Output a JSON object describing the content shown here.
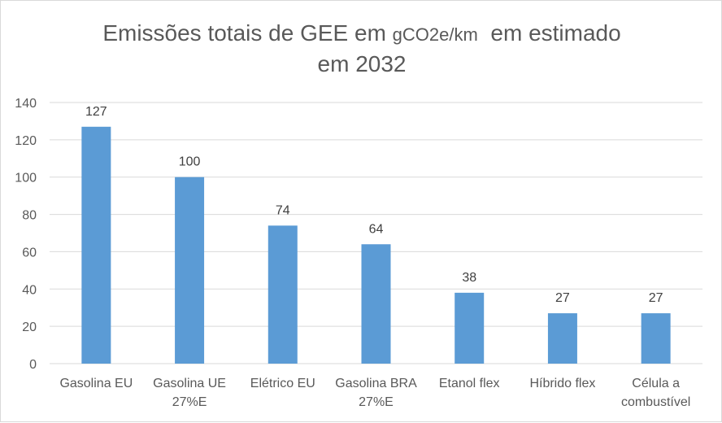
{
  "chart_data": {
    "type": "bar",
    "title_part1": "Emissões totais de GEE em ",
    "title_unit": "gCO2e/km",
    "title_part2": "  em estimado",
    "title_line2": "em 2032",
    "categories": [
      "Gasolina EU",
      "Gasolina UE 27%E",
      "Elétrico EU",
      "Gasolina BRA 27%E",
      "Etanol flex",
      "Híbrido flex",
      "Célula a combustível"
    ],
    "category_lines": [
      [
        "Gasolina EU"
      ],
      [
        "Gasolina UE",
        "27%E"
      ],
      [
        "Elétrico EU"
      ],
      [
        "Gasolina BRA",
        "27%E"
      ],
      [
        "Etanol flex"
      ],
      [
        "Híbrido flex"
      ],
      [
        "Célula a",
        "combustível"
      ]
    ],
    "values": [
      127,
      100,
      74,
      64,
      38,
      27,
      27
    ],
    "data_labels": [
      "127",
      "100",
      "74",
      "64",
      "38",
      "27",
      "27"
    ],
    "ylim": [
      0,
      140
    ],
    "yticks": [
      0,
      20,
      40,
      60,
      80,
      100,
      120,
      140
    ],
    "ytick_labels": [
      "0",
      "20",
      "40",
      "60",
      "80",
      "100",
      "120",
      "140"
    ],
    "grid": true,
    "legend": "none",
    "bar_color": "#5b9bd5",
    "grid_color": "#d9d9d9",
    "text_color": "#595959"
  }
}
